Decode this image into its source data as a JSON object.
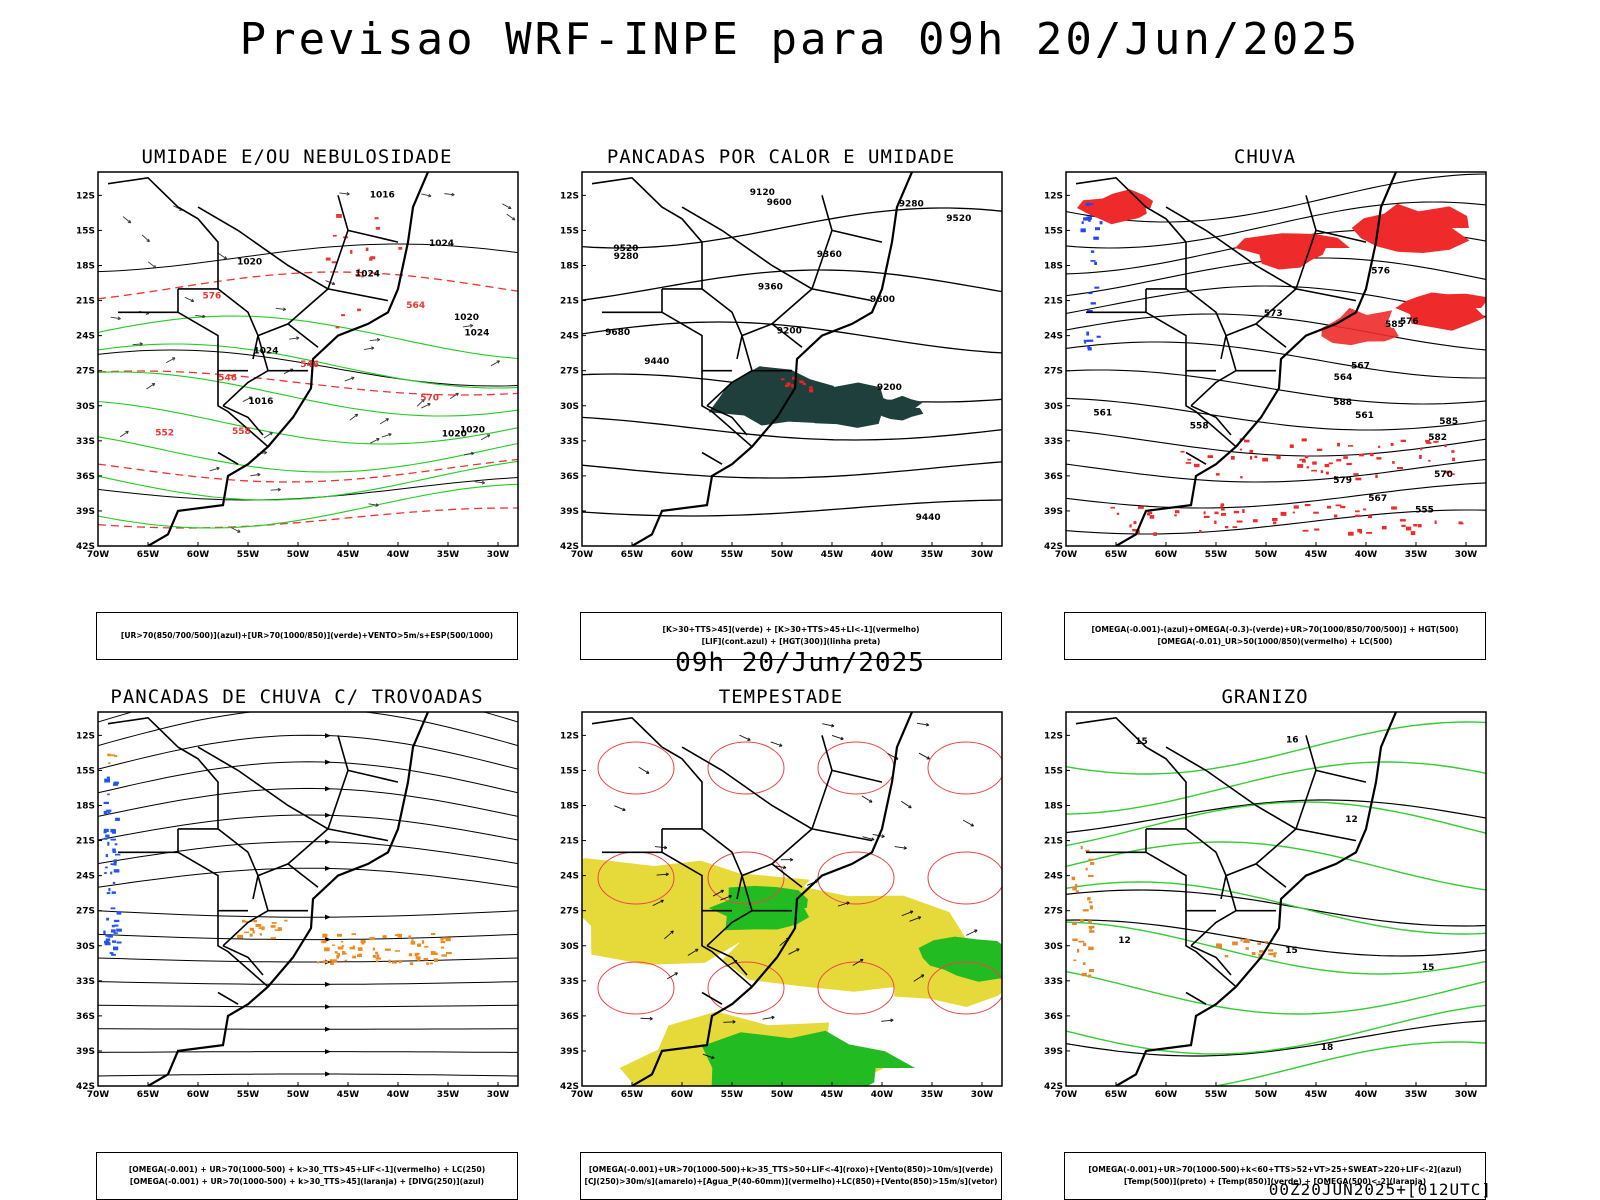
{
  "header": {
    "title": "Previsao WRF-INPE  para 09h 20/Jun/2025"
  },
  "middle": {
    "title": "09h 20/Jun/2025"
  },
  "footer": {
    "run": "00Z20JUN2025+[012UTC]"
  },
  "axes": {
    "lat_ticks": [
      "12S",
      "15S",
      "18S",
      "21S",
      "24S",
      "27S",
      "30S",
      "33S",
      "36S",
      "39S",
      "42S"
    ],
    "lon_ticks": [
      "70W",
      "65W",
      "60W",
      "55W",
      "50W",
      "45W",
      "40W",
      "35W",
      "30W"
    ],
    "lat_range": [
      -42,
      -10
    ],
    "lon_range": [
      -70,
      -28
    ]
  },
  "panels": [
    {
      "title": "UMIDADE E/OU NEBULOSIDADE",
      "legend": [
        "[UR>70(850/700/500)](azul)+[UR>70(1000/850)](verde)+VENTO>5m/s+ESP(500/1000)"
      ],
      "contour_labels": [
        "1020",
        "1020",
        "1024",
        "1024",
        "1024",
        "1020",
        "1016",
        "1016",
        "1020",
        "1024",
        "576",
        "570",
        "564",
        "558",
        "552",
        "546",
        "546"
      ]
    },
    {
      "title": "PANCADAS POR CALOR E UMIDADE",
      "legend": [
        "[K>30+TTS>45](verde) + [K>30+TTS>45+LI<-1](vermelho)",
        "[LIF](cont.azul) + [HGT(300)](linha preta)"
      ],
      "contour_labels": [
        "9680",
        "9600",
        "9600",
        "9520",
        "9520",
        "9440",
        "9440",
        "9360",
        "9360",
        "9280",
        "9200",
        "9200",
        "9120",
        "9280"
      ]
    },
    {
      "title": "CHUVA",
      "legend": [
        "[OMEGA(-0.001)-(azul)+OMEGA(-0.3)-(verde)+UR>70(1000/850/700/500)] + HGT(500)",
        "[OMEGA(-0.01)_UR>50(1000/850)(vermelho) + LC(500)"
      ],
      "contour_labels": [
        "588",
        "585",
        "585",
        "582",
        "579",
        "576",
        "576",
        "573",
        "570",
        "567",
        "567",
        "564",
        "561",
        "561",
        "558",
        "555"
      ]
    },
    {
      "title": "PANCADAS DE CHUVA C/ TROVOADAS",
      "legend": [
        "[OMEGA(-0.001) + UR>70(1000-500) + k>30_TTS>45+LIF<-1](vermelho) + LC(250)",
        "[OMEGA(-0.001) + UR>70(1000-500) + k>30_TTS>45](laranja) + [DIVG(250)](azul)"
      ],
      "contour_labels": []
    },
    {
      "title": "TEMPESTADE",
      "legend": [
        "[OMEGA(-0.001)+UR>70(1000-500)+k>35_TTS>50+LIF<-4](roxo)+[Vento(850)>10m/s](verde)",
        "[CJ(250)>30m/s](amarelo)+[Agua_P(40-60mm)](vermelho)+LC(850)+[Vento(850)>15m/s](vetor)"
      ],
      "contour_labels": []
    },
    {
      "title": "GRANIZO",
      "legend": [
        "[OMEGA(-0.001)+UR>70(1000-500)+k<60+TTS>52+VT>25+SWEAT>220+LIF<-2](azul)",
        "[Temp(500)](preto) + [Temp(850)](verde) + [OMEGA(500)<-2](laranja)"
      ],
      "contour_labels": [
        "12",
        "15",
        "12",
        "15",
        "18",
        "16",
        "15"
      ]
    }
  ],
  "colors": {
    "humid_upper": "#8a8cff",
    "humid_upper_dark": "#3a3ae0",
    "humid_low": "#22cc22",
    "thickness": "#ee3333",
    "conv_green": "#1e3f3c",
    "conv_red": "#ee2222",
    "lif_blue": "#3355ee",
    "rain_red": "#ee2a2a",
    "rain_blue": "#2244ff",
    "rain_green": "#22bb22",
    "thunder_orange": "#f08a20",
    "thunder_blue": "#2255ee",
    "storm_yellow": "#e6da3a",
    "storm_green": "#22bb22",
    "storm_red": "#ee4444",
    "hail_green": "#33cc33",
    "hail_orange": "#e8862a"
  }
}
